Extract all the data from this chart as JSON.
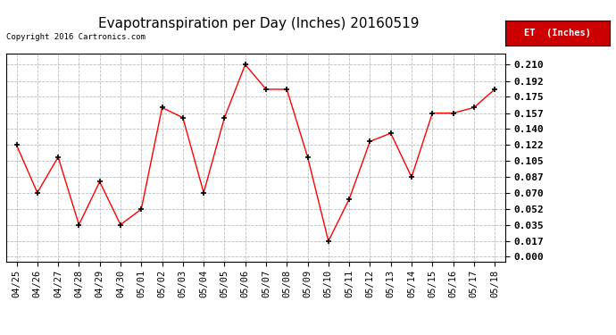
{
  "title": "Evapotranspiration per Day (Inches) 20160519",
  "copyright_text": "Copyright 2016 Cartronics.com",
  "legend_label": "ET  (Inches)",
  "dates": [
    "04/25",
    "04/26",
    "04/27",
    "04/28",
    "04/29",
    "04/30",
    "05/01",
    "05/02",
    "05/03",
    "05/04",
    "05/05",
    "05/06",
    "05/07",
    "05/08",
    "05/09",
    "05/10",
    "05/11",
    "05/12",
    "05/13",
    "05/14",
    "05/15",
    "05/16",
    "05/17",
    "05/18"
  ],
  "values": [
    0.122,
    0.07,
    0.109,
    0.035,
    0.082,
    0.035,
    0.052,
    0.163,
    0.152,
    0.07,
    0.152,
    0.21,
    0.183,
    0.183,
    0.109,
    0.017,
    0.063,
    0.126,
    0.135,
    0.087,
    0.157,
    0.157,
    0.163,
    0.183
  ],
  "yticks": [
    0.0,
    0.017,
    0.035,
    0.052,
    0.07,
    0.087,
    0.105,
    0.122,
    0.14,
    0.157,
    0.175,
    0.192,
    0.21
  ],
  "line_color": "red",
  "marker_color": "black",
  "bg_color": "#ffffff",
  "grid_color": "#bbbbbb",
  "title_fontsize": 11,
  "tick_fontsize": 7.5,
  "ytick_fontsize": 8,
  "legend_bg": "#cc0000",
  "legend_text_color": "#ffffff"
}
